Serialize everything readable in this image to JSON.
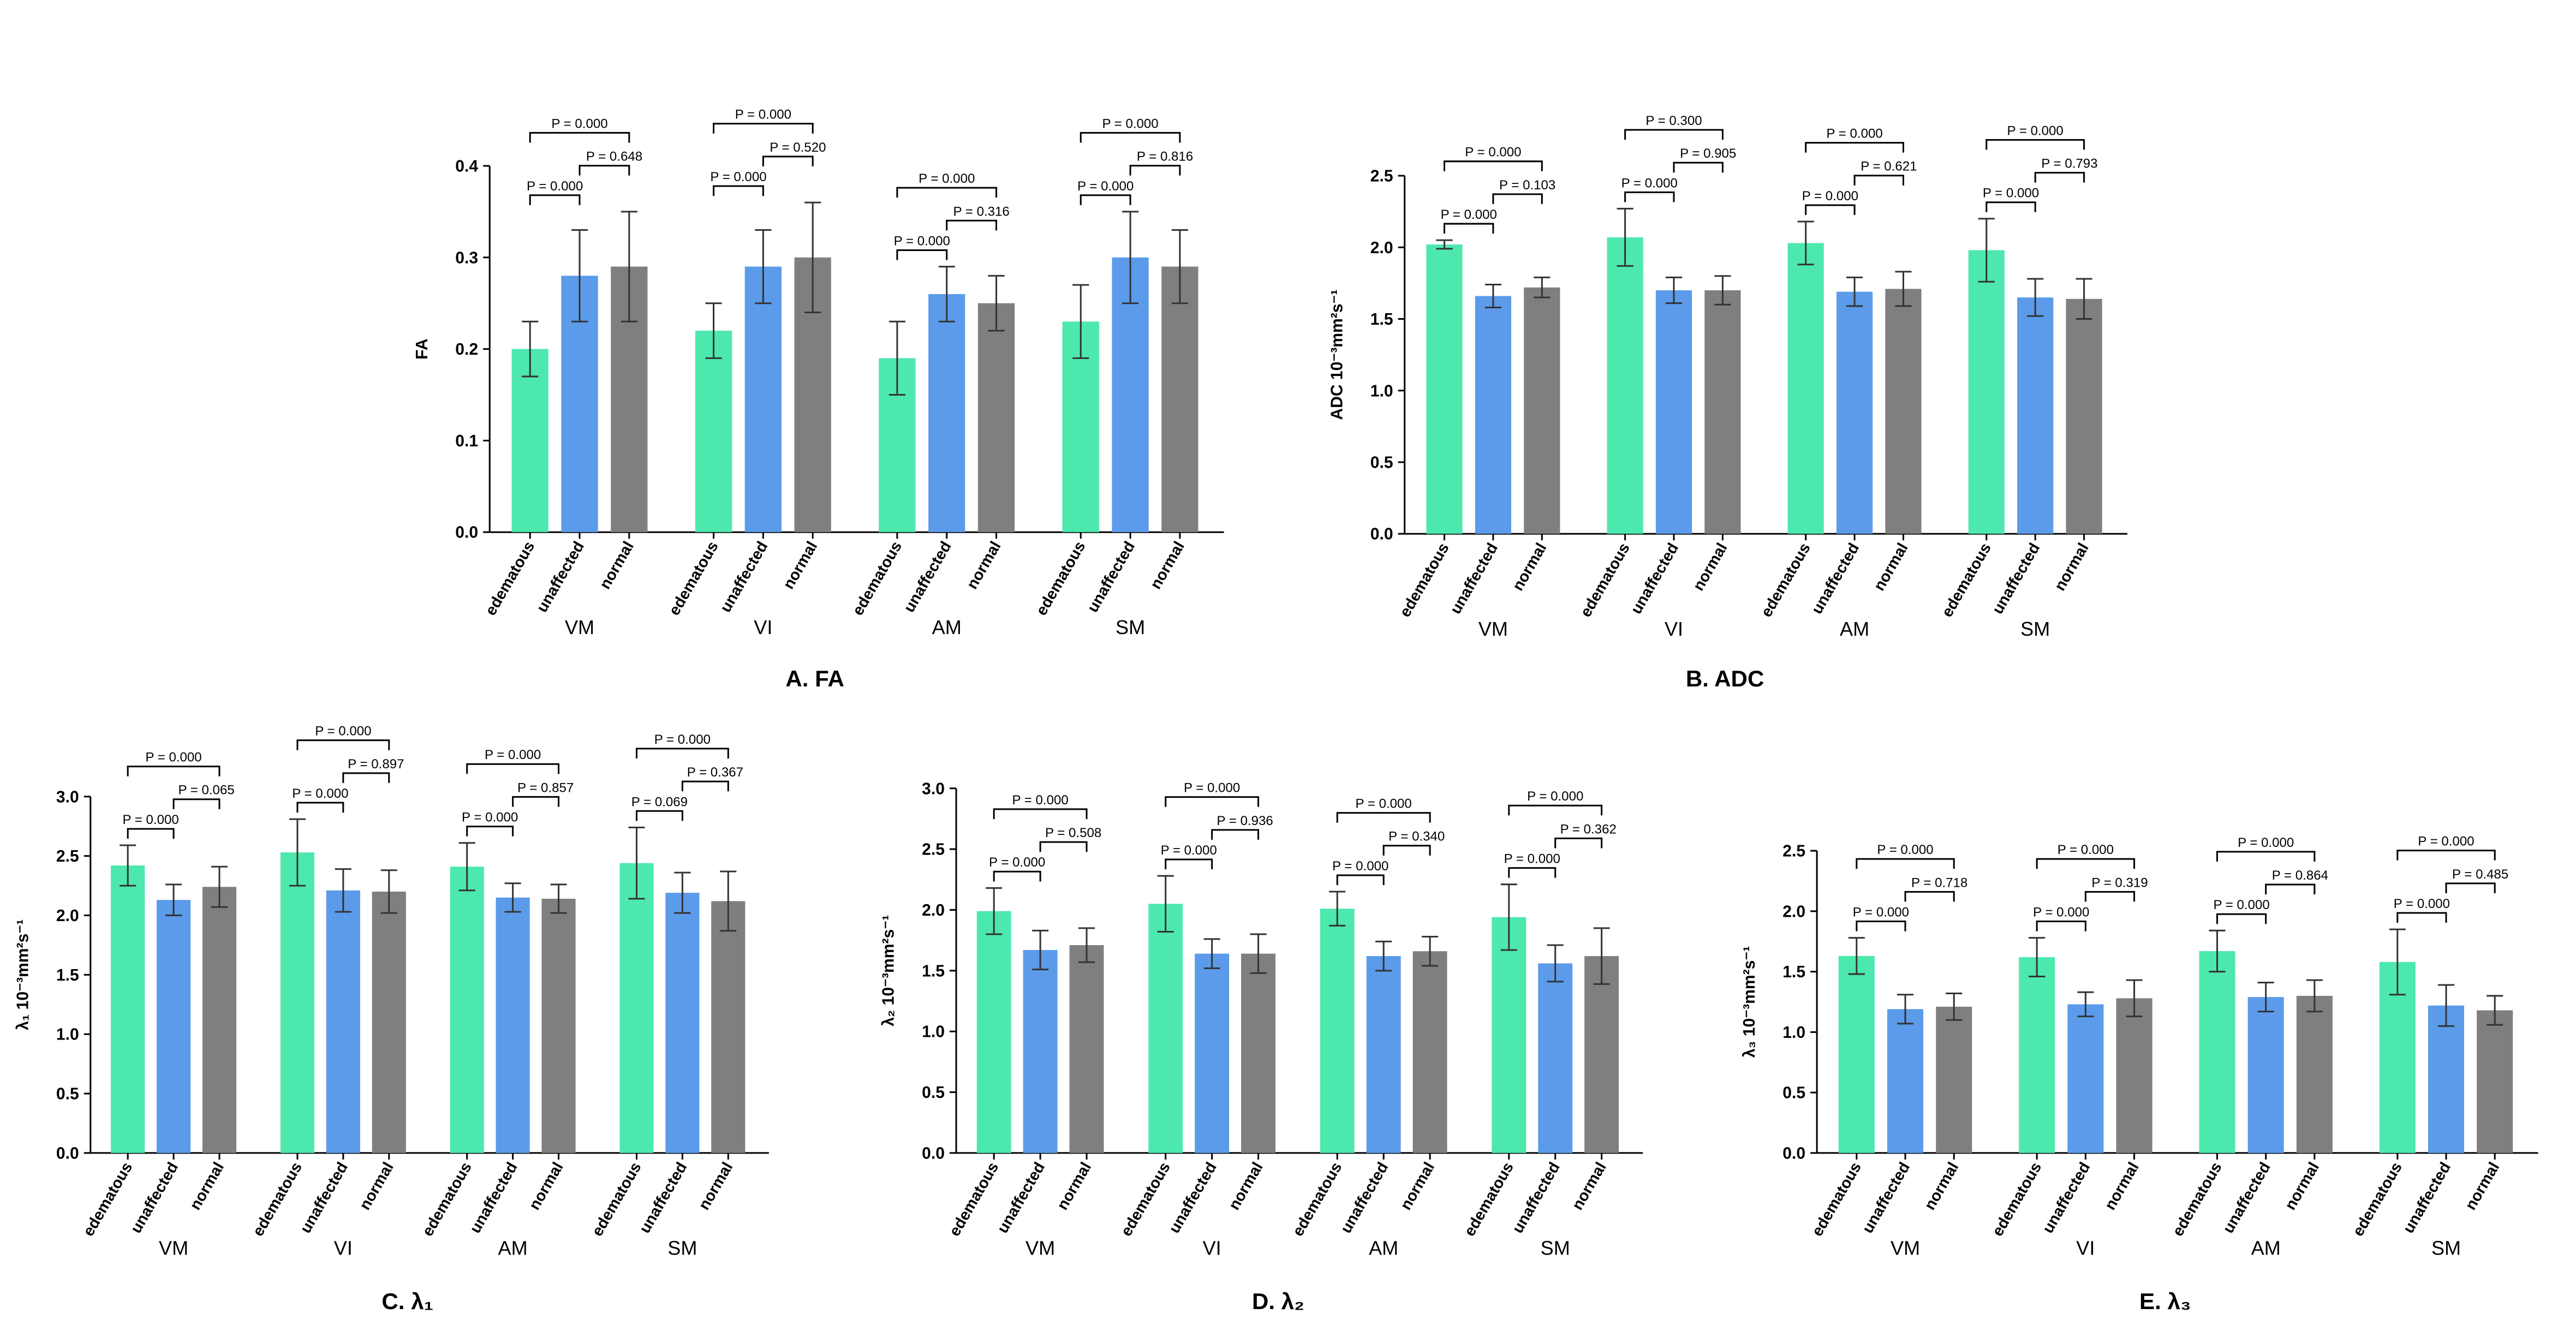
{
  "chart_data": [
    {
      "type": "bar",
      "title": "A. FA",
      "y_label": "FA",
      "categories": [
        "VM",
        "VI",
        "AM",
        "SM"
      ],
      "series": [
        {
          "name": "edematous",
          "color": "#4de8ae",
          "values": [
            0.2,
            0.22,
            0.19,
            0.23
          ],
          "errors": [
            0.03,
            0.03,
            0.04,
            0.04
          ]
        },
        {
          "name": "unaffected",
          "color": "#5b9bea",
          "values": [
            0.28,
            0.29,
            0.26,
            0.3
          ],
          "errors": [
            0.05,
            0.04,
            0.03,
            0.05
          ]
        },
        {
          "name": "normal",
          "color": "#7f7f7f",
          "values": [
            0.29,
            0.3,
            0.25,
            0.29
          ],
          "errors": [
            0.06,
            0.06,
            0.03,
            0.04
          ]
        }
      ],
      "p_values": [
        [
          "P = 0.000",
          "P = 0.648",
          "P = 0.000"
        ],
        [
          "P = 0.000",
          "P = 0.520",
          "P = 0.000"
        ],
        [
          "P = 0.000",
          "P = 0.316",
          "P = 0.000"
        ],
        [
          "P = 0.000",
          "P = 0.816",
          "P = 0.000"
        ]
      ],
      "ylim": [
        0,
        0.4
      ],
      "yticks": [
        {
          "value": 0,
          "label": "0.0"
        },
        0.1,
        0.2,
        0.3,
        0.4
      ]
    },
    {
      "type": "bar",
      "title": "B. ADC",
      "y_label": "ADC 10⁻³mm²s⁻¹",
      "categories": [
        "VM",
        "VI",
        "AM",
        "SM"
      ],
      "series": [
        {
          "name": "edematous",
          "color": "#4de8ae",
          "values": [
            2.02,
            2.07,
            2.03,
            1.98
          ],
          "errors": [
            0.03,
            0.2,
            0.15,
            0.22
          ]
        },
        {
          "name": "unaffected",
          "color": "#5b9bea",
          "values": [
            1.66,
            1.7,
            1.69,
            1.65
          ],
          "errors": [
            0.08,
            0.09,
            0.1,
            0.13
          ]
        },
        {
          "name": "normal",
          "color": "#7f7f7f",
          "values": [
            1.72,
            1.7,
            1.71,
            1.64
          ],
          "errors": [
            0.07,
            0.1,
            0.12,
            0.14
          ]
        }
      ],
      "p_values": [
        [
          "P = 0.000",
          "P = 0.103",
          "P = 0.000"
        ],
        [
          "P = 0.000",
          "P = 0.905",
          "P = 0.300"
        ],
        [
          "P = 0.000",
          "P = 0.621",
          "P = 0.000"
        ],
        [
          "P = 0.000",
          "P = 0.793",
          "P = 0.000"
        ]
      ],
      "ylim": [
        0,
        2.5
      ],
      "yticks": [
        {
          "value": 0,
          "label": "0.0"
        },
        0.5,
        {
          "value": 1,
          "label": "1.0"
        },
        1.5,
        {
          "value": 2,
          "label": "2.0"
        },
        2.5
      ]
    },
    {
      "type": "bar",
      "title": "C. λ₁",
      "y_label": "λ₁ 10⁻³mm²s⁻¹",
      "categories": [
        "VM",
        "VI",
        "AM",
        "SM"
      ],
      "series": [
        {
          "name": "edematous",
          "color": "#4de8ae",
          "values": [
            2.42,
            2.53,
            2.41,
            2.44
          ],
          "errors": [
            0.17,
            0.28,
            0.2,
            0.3
          ]
        },
        {
          "name": "unaffected",
          "color": "#5b9bea",
          "values": [
            2.13,
            2.21,
            2.15,
            2.19
          ],
          "errors": [
            0.13,
            0.18,
            0.12,
            0.17
          ]
        },
        {
          "name": "normal",
          "color": "#7f7f7f",
          "values": [
            2.24,
            2.2,
            2.14,
            2.12
          ],
          "errors": [
            0.17,
            0.18,
            0.12,
            0.25
          ]
        }
      ],
      "p_values": [
        [
          "P = 0.000",
          "P = 0.065",
          "P = 0.000"
        ],
        [
          "P = 0.000",
          "P = 0.897",
          "P = 0.000"
        ],
        [
          "P = 0.000",
          "P = 0.857",
          "P = 0.000"
        ],
        [
          "P = 0.069",
          "P = 0.367",
          "P = 0.000"
        ]
      ],
      "ylim": [
        0,
        3
      ],
      "yticks": [
        {
          "value": 0,
          "label": "0.0"
        },
        0.5,
        {
          "value": 1,
          "label": "1.0"
        },
        1.5,
        {
          "value": 2,
          "label": "2.0"
        },
        2.5,
        {
          "value": 3,
          "label": "3.0"
        }
      ]
    },
    {
      "type": "bar",
      "title": "D. λ₂",
      "y_label": "λ₂ 10⁻³mm²s⁻¹",
      "categories": [
        "VM",
        "VI",
        "AM",
        "SM"
      ],
      "series": [
        {
          "name": "edematous",
          "color": "#4de8ae",
          "values": [
            1.99,
            2.05,
            2.01,
            1.94
          ],
          "errors": [
            0.19,
            0.23,
            0.14,
            0.27
          ]
        },
        {
          "name": "unaffected",
          "color": "#5b9bea",
          "values": [
            1.67,
            1.64,
            1.62,
            1.56
          ],
          "errors": [
            0.16,
            0.12,
            0.12,
            0.15
          ]
        },
        {
          "name": "normal",
          "color": "#7f7f7f",
          "values": [
            1.71,
            1.64,
            1.66,
            1.62
          ],
          "errors": [
            0.14,
            0.16,
            0.12,
            0.23
          ]
        }
      ],
      "p_values": [
        [
          "P = 0.000",
          "P = 0.508",
          "P = 0.000"
        ],
        [
          "P = 0.000",
          "P = 0.936",
          "P = 0.000"
        ],
        [
          "P = 0.000",
          "P = 0.340",
          "P = 0.000"
        ],
        [
          "P = 0.000",
          "P = 0.362",
          "P = 0.000"
        ]
      ],
      "ylim": [
        0,
        3
      ],
      "yticks": [
        {
          "value": 0,
          "label": "0.0"
        },
        0.5,
        {
          "value": 1,
          "label": "1.0"
        },
        1.5,
        {
          "value": 2,
          "label": "2.0"
        },
        2.5,
        {
          "value": 3,
          "label": "3.0"
        }
      ]
    },
    {
      "type": "bar",
      "title": "E. λ₃",
      "y_label": "λ₃ 10⁻³mm²s⁻¹",
      "categories": [
        "VM",
        "VI",
        "AM",
        "SM"
      ],
      "series": [
        {
          "name": "edematous",
          "color": "#4de8ae",
          "values": [
            1.63,
            1.62,
            1.67,
            1.58
          ],
          "errors": [
            0.15,
            0.16,
            0.17,
            0.27
          ]
        },
        {
          "name": "unaffected",
          "color": "#5b9bea",
          "values": [
            1.19,
            1.23,
            1.29,
            1.22
          ],
          "errors": [
            0.12,
            0.1,
            0.12,
            0.17
          ]
        },
        {
          "name": "normal",
          "color": "#7f7f7f",
          "values": [
            1.21,
            1.28,
            1.3,
            1.18
          ],
          "errors": [
            0.11,
            0.15,
            0.13,
            0.12
          ]
        }
      ],
      "p_values": [
        [
          "P = 0.000",
          "P = 0.718",
          "P = 0.000"
        ],
        [
          "P = 0.000",
          "P = 0.319",
          "P = 0.000"
        ],
        [
          "P = 0.000",
          "P = 0.864",
          "P = 0.000"
        ],
        [
          "P = 0.000",
          "P = 0.485",
          "P = 0.000"
        ]
      ],
      "ylim": [
        0,
        2.5
      ],
      "yticks": [
        {
          "value": 0,
          "label": "0.0"
        },
        0.5,
        {
          "value": 1,
          "label": "1.0"
        },
        1.5,
        {
          "value": 2,
          "label": "2.0"
        },
        2.5
      ]
    }
  ]
}
